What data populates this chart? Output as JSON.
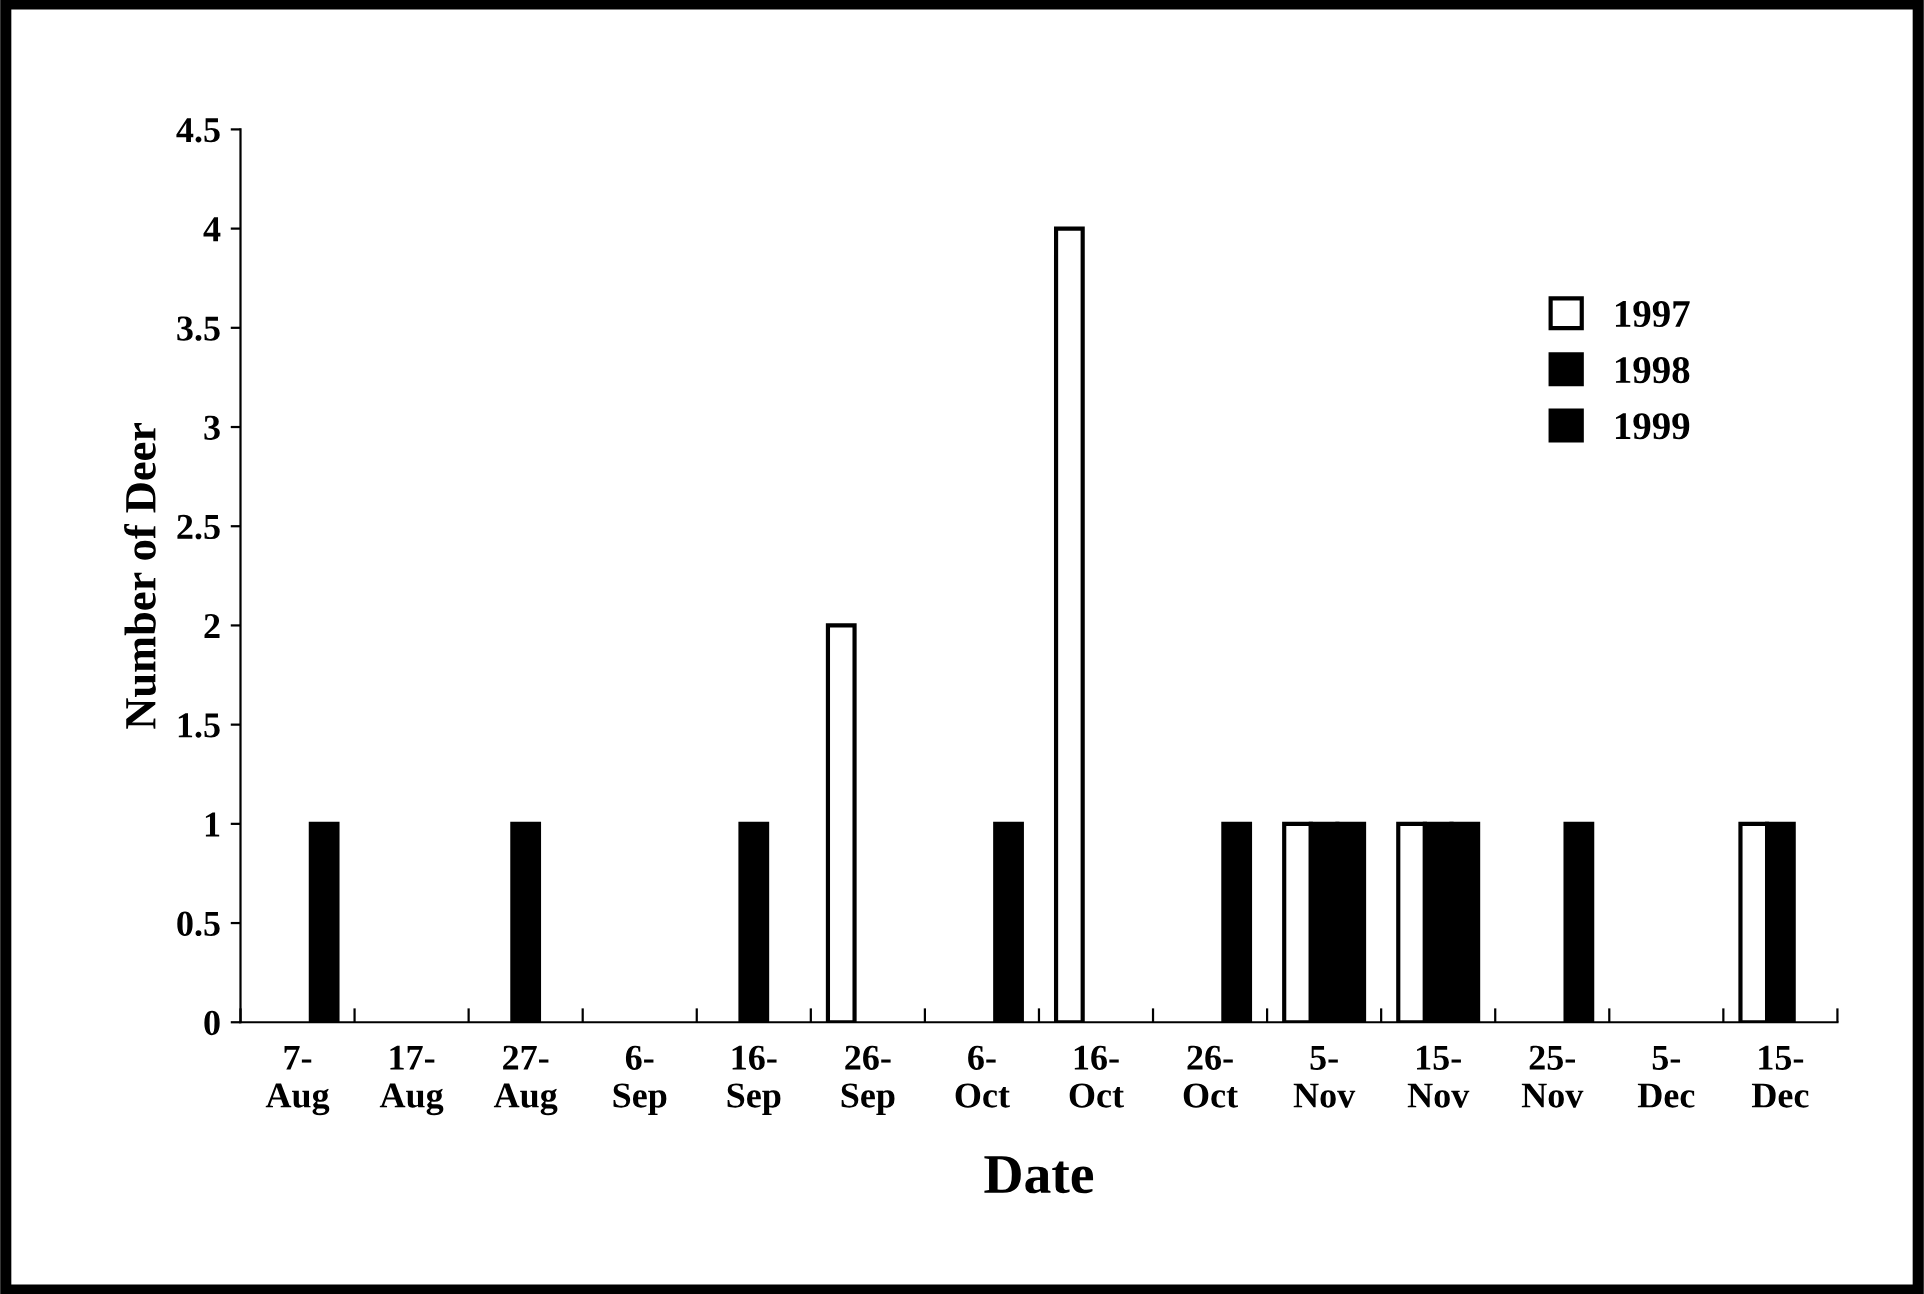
{
  "chart_data": {
    "type": "bar",
    "xlabel": "Date",
    "ylabel": "Number of Deer",
    "categories": [
      "7-\nAug",
      "17-\nAug",
      "27-\nAug",
      "6-\nSep",
      "16-\nSep",
      "26-\nSep",
      "6-\nOct",
      "16-\nOct",
      "26-\nOct",
      "5-\nNov",
      "15-\nNov",
      "25-\nNov",
      "5-\nDec",
      "15-\nDec"
    ],
    "series": [
      {
        "name": "1997",
        "color": "#ffffff",
        "values": [
          null,
          null,
          null,
          null,
          null,
          2,
          null,
          4,
          null,
          1,
          1,
          null,
          null,
          1
        ]
      },
      {
        "name": "1998",
        "color": "#000000",
        "values": [
          null,
          null,
          1,
          null,
          1,
          null,
          null,
          null,
          null,
          1,
          1,
          null,
          null,
          1
        ]
      },
      {
        "name": "1999",
        "color": "#000000",
        "values": [
          1,
          null,
          null,
          null,
          null,
          null,
          1,
          null,
          1,
          1,
          1,
          1,
          null,
          null
        ]
      }
    ],
    "ylim": [
      0,
      4.5
    ],
    "yticks": [
      0,
      0.5,
      1,
      1.5,
      2,
      2.5,
      3,
      3.5,
      4,
      4.5
    ],
    "grid": false,
    "legend": "top right"
  }
}
